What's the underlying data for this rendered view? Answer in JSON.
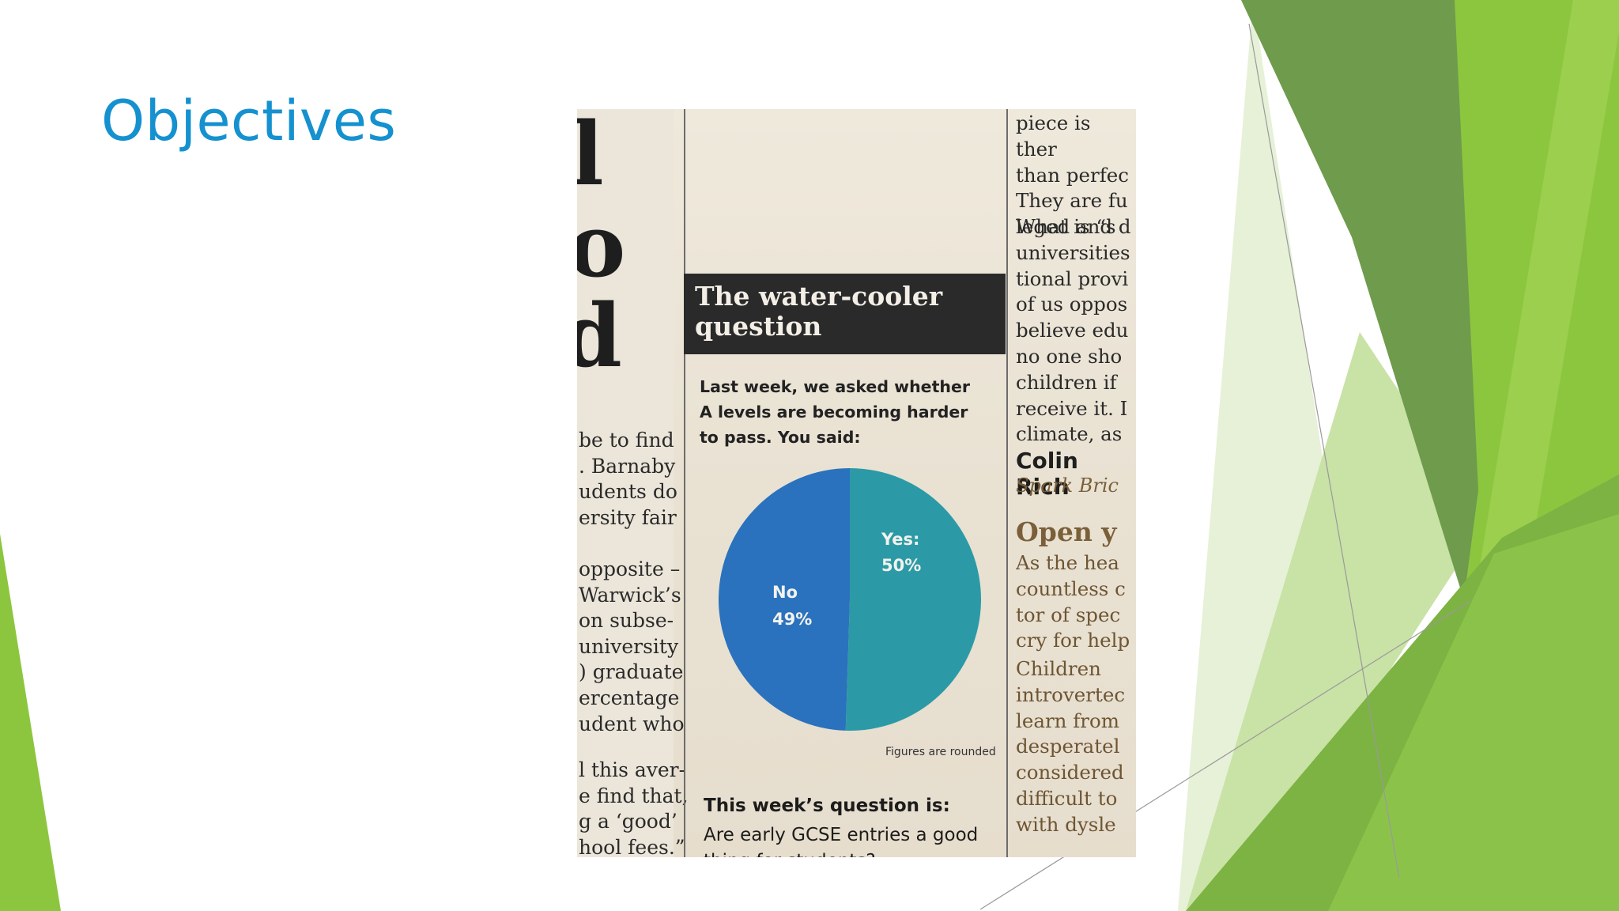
{
  "slide": {
    "title": "Objectives",
    "colors": {
      "title": "#1591cf",
      "green_dark": "#6a9a45",
      "green_mid": "#8cc63f",
      "green_light": "#a7d46a",
      "green_pale": "#dcecc8"
    }
  },
  "newspaper": {
    "left_column": {
      "big_letters": [
        "l",
        "o",
        "d"
      ],
      "para1": [
        "be to find",
        ". Barnaby",
        "udents do",
        "ersity fair"
      ],
      "para2": [
        "opposite –",
        "Warwick’s",
        "on subse-",
        "university",
        ") graduate",
        "ercentage",
        "udent who"
      ],
      "para3": [
        "l this aver-",
        "e find that,",
        "g a ‘good’",
        "hool fees.”"
      ]
    },
    "box": {
      "heading_line1": "The water-cooler",
      "heading_line2": "question",
      "intro_line1": "Last week, we asked whether",
      "intro_line2": "A levels are becoming harder",
      "intro_line3": "to pass. You said:",
      "footnote": "Figures are rounded",
      "next_question_heading": "This week’s question is:",
      "next_question_line1": "Are early GCSE entries a good",
      "next_question_line2": "thing for students?"
    },
    "chart_data": {
      "type": "pie",
      "slices": [
        {
          "label": "Yes:",
          "value": 50,
          "value_label": "50%",
          "color": "#2b9aa6"
        },
        {
          "label": "No",
          "value": 49,
          "value_label": "49%",
          "color": "#2a72bd"
        }
      ]
    },
    "right_column": {
      "para1": [
        "piece is ther",
        "than perfec",
        "They are fu",
        "leged and d"
      ],
      "para2": [
        "What is “s",
        "universities",
        "tional provi",
        "of us oppos",
        "believe edu",
        "no one sho",
        "children if",
        "receive it. I",
        "climate, as"
      ],
      "author": "Colin Rich",
      "place": "Spark Bric",
      "subhead": "Open y",
      "para3": [
        "As the hea",
        "countless c",
        "tor of spec",
        "cry for help"
      ],
      "para4": [
        "Children",
        "introvertec",
        "learn from",
        "desperatel",
        "considered",
        "difficult to",
        "with dysle"
      ]
    }
  }
}
